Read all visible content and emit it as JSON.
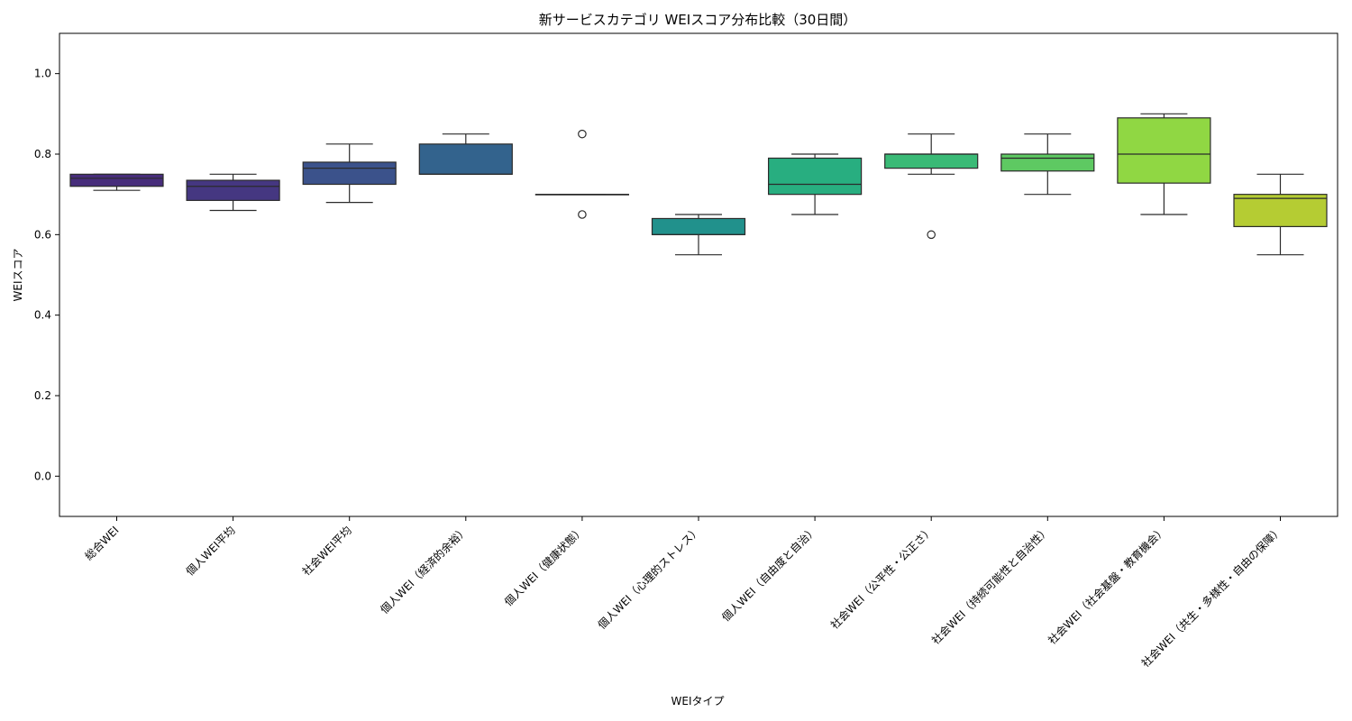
{
  "chart_data": {
    "type": "boxplot",
    "title": "新サービスカテゴリ WEIスコア分布比較（30日間）",
    "xlabel": "WEIタイプ",
    "ylabel": "WEIスコア",
    "ylim": [
      -0.1,
      1.1
    ],
    "yticks": [
      0.0,
      0.2,
      0.4,
      0.6,
      0.8,
      1.0
    ],
    "ytick_labels": [
      "0.0",
      "0.2",
      "0.4",
      "0.6",
      "0.8",
      "1.0"
    ],
    "grid": false,
    "categories": [
      "総合WEI",
      "個人WEI平均",
      "社会WEI平均",
      "個人WEI（経済的余裕）",
      "個人WEI（健康状態）",
      "個人WEI（心理的ストレス）",
      "個人WEI（自由度と自治）",
      "社会WEI（公平性・公正さ）",
      "社会WEI（持続可能性と自治性）",
      "社会WEI（社会基盤・教育機会）",
      "社会WEI（共生・多様性・自由の保障）"
    ],
    "boxes": [
      {
        "whislo": 0.71,
        "q1": 0.72,
        "med": 0.74,
        "q3": 0.75,
        "whishi": 0.75,
        "fliers": [],
        "color": "#472d7b"
      },
      {
        "whislo": 0.66,
        "q1": 0.685,
        "med": 0.72,
        "q3": 0.735,
        "whishi": 0.75,
        "fliers": [],
        "color": "#453781"
      },
      {
        "whislo": 0.68,
        "q1": 0.725,
        "med": 0.765,
        "q3": 0.78,
        "whishi": 0.825,
        "fliers": [],
        "color": "#3b528b"
      },
      {
        "whislo": 0.75,
        "q1": 0.75,
        "med": 0.75,
        "q3": 0.825,
        "whishi": 0.85,
        "fliers": [],
        "color": "#33638d"
      },
      {
        "whislo": 0.7,
        "q1": 0.7,
        "med": 0.7,
        "q3": 0.7,
        "whishi": 0.7,
        "fliers": [
          0.85,
          0.65
        ],
        "color": "#2c728e"
      },
      {
        "whislo": 0.55,
        "q1": 0.6,
        "med": 0.6,
        "q3": 0.64,
        "whishi": 0.65,
        "fliers": [],
        "color": "#21918c"
      },
      {
        "whislo": 0.65,
        "q1": 0.7,
        "med": 0.725,
        "q3": 0.79,
        "whishi": 0.8,
        "fliers": [],
        "color": "#28ae80"
      },
      {
        "whislo": 0.75,
        "q1": 0.765,
        "med": 0.8,
        "q3": 0.8,
        "whishi": 0.85,
        "fliers": [
          0.6
        ],
        "color": "#3aba76"
      },
      {
        "whislo": 0.7,
        "q1": 0.758,
        "med": 0.79,
        "q3": 0.8,
        "whishi": 0.85,
        "fliers": [],
        "color": "#5ec962"
      },
      {
        "whislo": 0.65,
        "q1": 0.728,
        "med": 0.8,
        "q3": 0.89,
        "whishi": 0.9,
        "fliers": [],
        "color": "#90d743"
      },
      {
        "whislo": 0.55,
        "q1": 0.62,
        "med": 0.69,
        "q3": 0.7,
        "whishi": 0.75,
        "fliers": [],
        "color": "#b5cc33"
      }
    ]
  }
}
